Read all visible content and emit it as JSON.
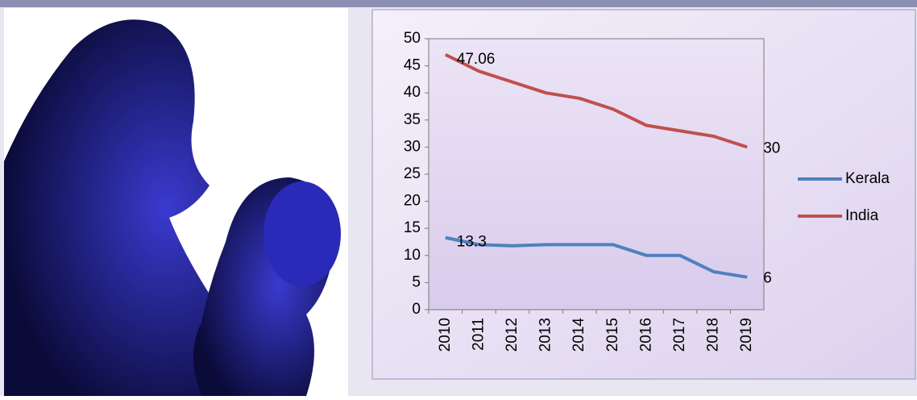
{
  "chart_data": {
    "type": "line",
    "categories": [
      "2010",
      "2011",
      "2012",
      "2013",
      "2014",
      "2015",
      "2016",
      "2017",
      "2018",
      "2019"
    ],
    "series": [
      {
        "name": "Kerala",
        "color": "#4f81bd",
        "values": [
          13.3,
          12,
          11.8,
          12,
          12,
          12,
          10,
          10,
          7,
          6
        ]
      },
      {
        "name": "India",
        "color": "#c0504d",
        "values": [
          47.06,
          44,
          42,
          40,
          39,
          37,
          34,
          33,
          32,
          30
        ]
      }
    ],
    "ylim": [
      0,
      50
    ],
    "yticks": [
      0,
      5,
      10,
      15,
      20,
      25,
      30,
      35,
      40,
      45,
      50
    ],
    "legend": "right"
  }
}
